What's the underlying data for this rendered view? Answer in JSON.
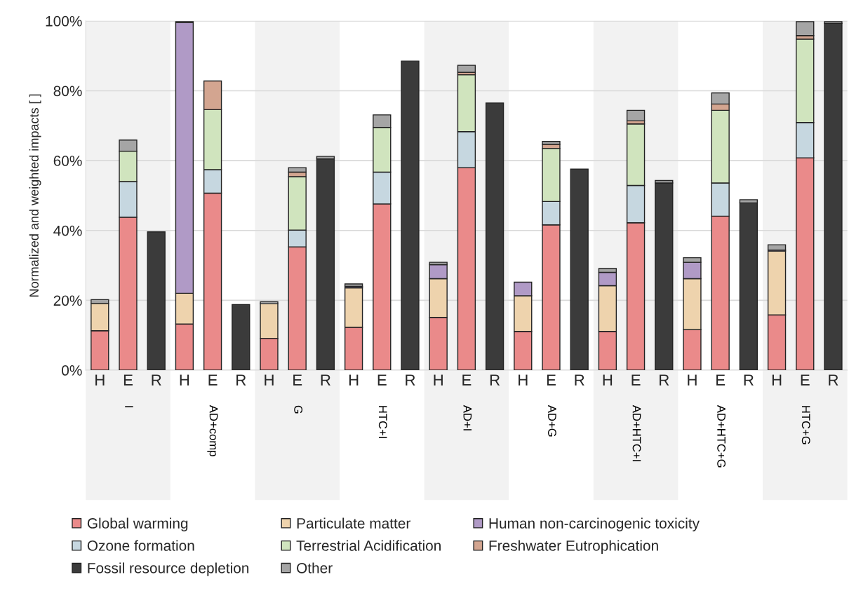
{
  "chart_data": {
    "type": "bar",
    "stacked": true,
    "ylabel": "Normalized and weighted impacts [ ]",
    "categories": [
      "H",
      "E",
      "R",
      "H",
      "E",
      "R",
      "H",
      "E",
      "R",
      "H",
      "E",
      "R",
      "H",
      "E",
      "R",
      "H",
      "E",
      "R",
      "H",
      "E",
      "R",
      "H",
      "E",
      "R",
      "H",
      "E",
      "R"
    ],
    "series": [
      {
        "name": "Global warming",
        "color": "#ea8a8a",
        "values": [
          11.3,
          43.8,
          null,
          13.2,
          50.7,
          null,
          9.1,
          35.3,
          null,
          12.3,
          47.6,
          null,
          15.1,
          58.0,
          null,
          11.1,
          41.6,
          null,
          11.1,
          42.2,
          null,
          11.6,
          44.1,
          null,
          15.8,
          60.8,
          null
        ]
      },
      {
        "name": "Particulate matter",
        "color": "#eed3ad",
        "values": [
          7.8,
          null,
          null,
          8.8,
          null,
          null,
          9.9,
          null,
          null,
          11.3,
          null,
          null,
          11.1,
          null,
          null,
          10.2,
          null,
          null,
          13.1,
          null,
          null,
          14.6,
          null,
          null,
          18.3,
          null,
          null
        ]
      },
      {
        "name": "Human non-carcinogenic toxicity",
        "color": "#b09ac6",
        "values": [
          null,
          null,
          null,
          77.5,
          null,
          null,
          null,
          null,
          null,
          0.4,
          null,
          null,
          4.0,
          null,
          null,
          3.9,
          null,
          null,
          3.8,
          null,
          null,
          4.7,
          null,
          null,
          0.3,
          null,
          null
        ]
      },
      {
        "name": "Ozone formation",
        "color": "#c6d7e0",
        "values": [
          null,
          10.2,
          null,
          null,
          6.7,
          null,
          null,
          4.8,
          null,
          null,
          9.1,
          null,
          null,
          10.3,
          null,
          null,
          6.7,
          null,
          null,
          10.7,
          null,
          null,
          9.5,
          null,
          null,
          10.1,
          null
        ]
      },
      {
        "name": "Terrestrial Acidification",
        "color": "#d0e4be",
        "values": [
          null,
          8.7,
          null,
          null,
          17.2,
          null,
          null,
          15.3,
          null,
          null,
          12.8,
          null,
          null,
          16.3,
          null,
          null,
          15.2,
          null,
          null,
          17.6,
          null,
          null,
          20.8,
          null,
          null,
          23.9,
          null
        ]
      },
      {
        "name": "Freshwater Eutrophication",
        "color": "#d3a590",
        "values": [
          null,
          null,
          null,
          null,
          8.2,
          null,
          null,
          1.3,
          null,
          null,
          null,
          null,
          null,
          0.7,
          null,
          null,
          1.2,
          null,
          null,
          0.9,
          null,
          null,
          1.8,
          null,
          null,
          1.0,
          null
        ]
      },
      {
        "name": "Fossil resource depletion",
        "color": "#3b3b3b",
        "values": [
          null,
          null,
          39.6,
          null,
          null,
          18.8,
          null,
          null,
          60.5,
          null,
          null,
          88.5,
          null,
          null,
          76.5,
          null,
          null,
          57.6,
          null,
          null,
          53.6,
          null,
          null,
          47.9,
          null,
          null,
          99.3
        ]
      },
      {
        "name": "Other",
        "color": "#a5a5a5",
        "values": [
          1.1,
          3.2,
          null,
          0.3,
          null,
          null,
          0.6,
          1.3,
          0.7,
          0.7,
          3.6,
          null,
          0.7,
          2.0,
          null,
          null,
          0.8,
          null,
          1.1,
          3.0,
          0.7,
          1.3,
          3.2,
          0.9,
          1.5,
          4.0,
          0.5
        ]
      }
    ],
    "ylim": [
      0,
      100
    ],
    "yticks": [
      {
        "value": 0,
        "label": "0%"
      },
      {
        "value": 20,
        "label": "20%"
      },
      {
        "value": 40,
        "label": "40%"
      },
      {
        "value": 60,
        "label": "60%"
      },
      {
        "value": 80,
        "label": "80%"
      },
      {
        "value": 100,
        "label": "100%"
      }
    ],
    "grid": "y",
    "legend": "bottom",
    "annotations": [
      "I",
      "AD+comp",
      "G",
      "HTC+I",
      "AD+I",
      "AD+G",
      "AD+HTC+I",
      "AD+HTC+G",
      "HTC+G"
    ]
  }
}
